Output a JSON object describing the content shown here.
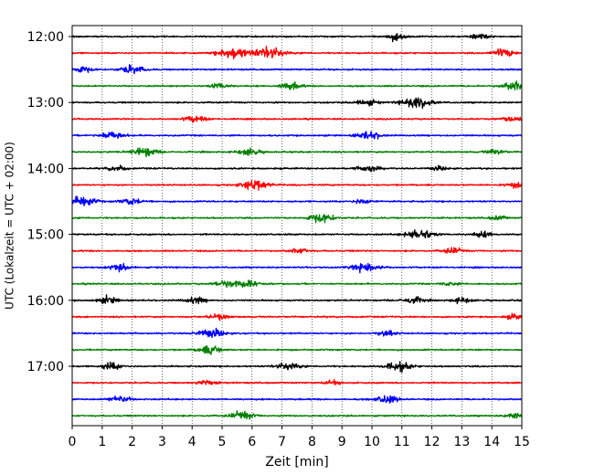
{
  "chart_data": {
    "type": "line",
    "plot_kind": "helicorder",
    "xlabel": "Zeit  [min]",
    "ylabel": "UTC (Lokalzeit = UTC + 02:00)",
    "xlim": [
      0,
      15
    ],
    "x_ticks": [
      0,
      1,
      2,
      3,
      4,
      5,
      6,
      7,
      8,
      9,
      10,
      11,
      12,
      13,
      14,
      15
    ],
    "x_tick_labels": [
      "0",
      "1",
      "2",
      "3",
      "4",
      "5",
      "6",
      "7",
      "8",
      "9",
      "10",
      "11",
      "12",
      "13",
      "14",
      "15"
    ],
    "y_tick_labels": [
      "12:00",
      "13:00",
      "14:00",
      "15:00",
      "16:00",
      "17:00"
    ],
    "grid": "vertical dotted lines at each minute",
    "trace_colors": [
      "#000000",
      "#ff0000",
      "#0000ff",
      "#008000"
    ],
    "trace_rows": [
      {
        "start": "12:00",
        "color": "#000000",
        "events": [
          [
            10.8,
            0.5
          ],
          [
            13.6,
            0.4
          ]
        ]
      },
      {
        "start": "12:15",
        "color": "#ff0000",
        "events": [
          [
            5.4,
            0.9
          ],
          [
            6.6,
            0.9
          ],
          [
            14.4,
            0.6
          ]
        ]
      },
      {
        "start": "12:30",
        "color": "#0000ff",
        "events": [
          [
            0.3,
            0.5
          ],
          [
            2.0,
            0.6
          ]
        ]
      },
      {
        "start": "12:45",
        "color": "#008000",
        "events": [
          [
            4.9,
            0.4
          ],
          [
            7.3,
            0.5
          ],
          [
            14.8,
            0.7
          ]
        ]
      },
      {
        "start": "13:00",
        "color": "#000000",
        "events": [
          [
            9.8,
            0.5
          ],
          [
            11.5,
            0.9
          ]
        ]
      },
      {
        "start": "13:15",
        "color": "#ff0000",
        "events": [
          [
            4.1,
            0.5
          ],
          [
            14.7,
            0.4
          ]
        ]
      },
      {
        "start": "13:30",
        "color": "#0000ff",
        "events": [
          [
            1.3,
            0.6
          ],
          [
            9.9,
            0.6
          ]
        ]
      },
      {
        "start": "13:45",
        "color": "#008000",
        "events": [
          [
            2.4,
            0.7
          ],
          [
            5.9,
            0.5
          ],
          [
            14.1,
            0.4
          ]
        ]
      },
      {
        "start": "14:00",
        "color": "#000000",
        "events": [
          [
            1.5,
            0.4
          ],
          [
            9.9,
            0.5
          ],
          [
            12.2,
            0.3
          ]
        ]
      },
      {
        "start": "14:15",
        "color": "#ff0000",
        "events": [
          [
            6.1,
            0.8
          ],
          [
            14.8,
            0.4
          ]
        ]
      },
      {
        "start": "14:30",
        "color": "#0000ff",
        "events": [
          [
            0.3,
            0.8
          ],
          [
            2.0,
            0.5
          ],
          [
            9.7,
            0.4
          ]
        ]
      },
      {
        "start": "14:45",
        "color": "#008000",
        "events": [
          [
            8.3,
            0.7
          ],
          [
            14.2,
            0.3
          ]
        ]
      },
      {
        "start": "15:00",
        "color": "#000000",
        "events": [
          [
            11.6,
            0.8
          ],
          [
            13.7,
            0.4
          ]
        ]
      },
      {
        "start": "15:15",
        "color": "#ff0000",
        "events": [
          [
            7.6,
            0.4
          ],
          [
            12.7,
            0.4
          ]
        ]
      },
      {
        "start": "15:30",
        "color": "#0000ff",
        "events": [
          [
            1.6,
            0.5
          ],
          [
            9.8,
            0.8
          ]
        ]
      },
      {
        "start": "15:45",
        "color": "#008000",
        "events": [
          [
            5.1,
            0.5
          ],
          [
            5.8,
            0.6
          ],
          [
            12.6,
            0.3
          ]
        ]
      },
      {
        "start": "16:00",
        "color": "#000000",
        "events": [
          [
            1.2,
            0.5
          ],
          [
            4.1,
            0.5
          ],
          [
            11.4,
            0.5
          ],
          [
            13.0,
            0.4
          ]
        ]
      },
      {
        "start": "16:15",
        "color": "#ff0000",
        "events": [
          [
            4.9,
            0.4
          ],
          [
            14.8,
            0.4
          ]
        ]
      },
      {
        "start": "16:30",
        "color": "#0000ff",
        "events": [
          [
            4.6,
            0.7
          ],
          [
            10.5,
            0.4
          ]
        ]
      },
      {
        "start": "16:45",
        "color": "#008000",
        "events": [
          [
            4.6,
            0.6
          ]
        ]
      },
      {
        "start": "17:00",
        "color": "#000000",
        "events": [
          [
            1.3,
            0.5
          ],
          [
            7.2,
            0.6
          ],
          [
            10.9,
            0.7
          ]
        ]
      },
      {
        "start": "17:15",
        "color": "#ff0000",
        "events": [
          [
            4.5,
            0.4
          ],
          [
            8.7,
            0.3
          ]
        ]
      },
      {
        "start": "17:30",
        "color": "#0000ff",
        "events": [
          [
            1.6,
            0.5
          ],
          [
            10.5,
            0.6
          ]
        ]
      },
      {
        "start": "17:45",
        "color": "#008000",
        "events": [
          [
            5.7,
            0.6
          ],
          [
            14.8,
            0.4
          ]
        ]
      }
    ]
  }
}
